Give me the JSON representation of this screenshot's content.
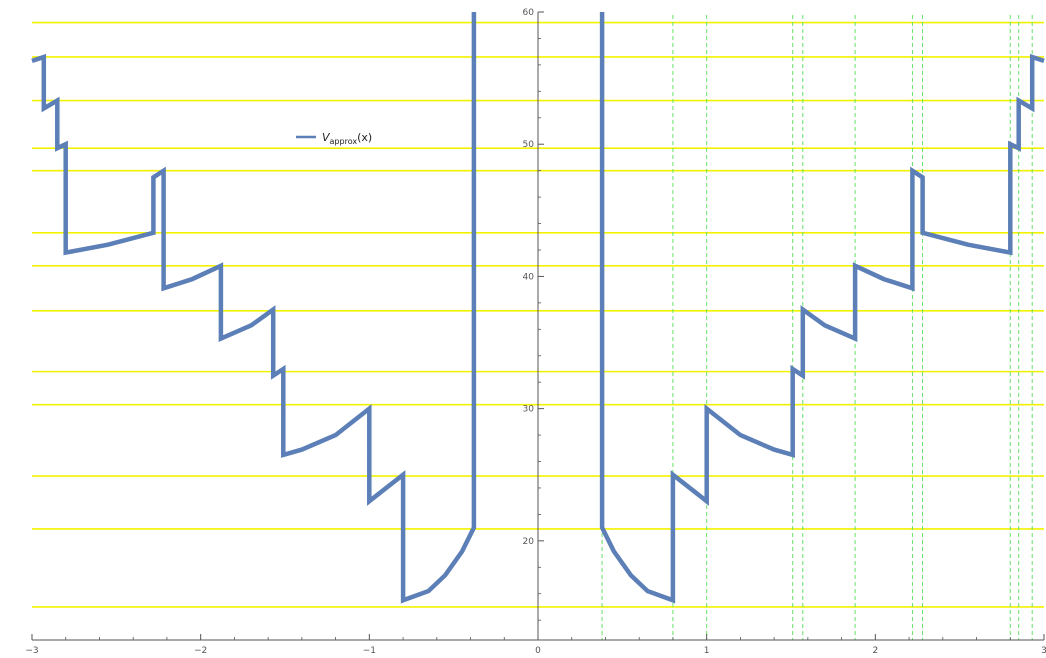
{
  "chart_data": {
    "type": "line",
    "title": "",
    "xlabel": "",
    "ylabel": "",
    "xlim": [
      -3,
      3
    ],
    "ylim": [
      12.5,
      60
    ],
    "grid": false,
    "colors": {
      "curve": "#5b7fb6",
      "levels": "#f2f200",
      "markers": "#66e066",
      "axis": "#555555"
    },
    "x_ticks": [
      -3,
      -2,
      -1,
      0,
      1,
      2,
      3
    ],
    "x_tick_labels": [
      "−3",
      "−2",
      "−1",
      "0",
      "1",
      "2",
      "3"
    ],
    "y_ticks": [
      20,
      30,
      40,
      50,
      60
    ],
    "y_tick_labels": [
      "20",
      "30",
      "40",
      "50",
      "60"
    ],
    "legend": {
      "position": "upper-left",
      "main": "V",
      "sub": "approx",
      "suffix": "(x)"
    },
    "series": [
      {
        "name": "V_approx(x)",
        "color": "#5b7fb6",
        "points_right": [
          [
            0.38,
            60
          ],
          [
            0.38,
            21.0
          ],
          [
            0.45,
            19.2
          ],
          [
            0.55,
            17.4
          ],
          [
            0.65,
            16.2
          ],
          [
            0.8,
            15.5
          ],
          [
            0.8,
            25.0
          ],
          [
            1.0,
            23.0
          ],
          [
            1.0,
            30.0
          ],
          [
            1.2,
            28.0
          ],
          [
            1.4,
            26.9
          ],
          [
            1.51,
            26.5
          ],
          [
            1.51,
            33.0
          ],
          [
            1.57,
            32.5
          ],
          [
            1.57,
            37.5
          ],
          [
            1.7,
            36.3
          ],
          [
            1.88,
            35.3
          ],
          [
            1.88,
            40.8
          ],
          [
            2.05,
            39.8
          ],
          [
            2.22,
            39.1
          ],
          [
            2.22,
            48.0
          ],
          [
            2.28,
            47.5
          ],
          [
            2.28,
            43.3
          ],
          [
            2.55,
            42.4
          ],
          [
            2.8,
            41.8
          ],
          [
            2.8,
            50.0
          ],
          [
            2.85,
            49.7
          ],
          [
            2.85,
            53.3
          ],
          [
            2.93,
            52.7
          ],
          [
            2.93,
            56.6
          ],
          [
            3.0,
            56.3
          ]
        ]
      }
    ],
    "energy_levels": [
      15.0,
      20.9,
      24.9,
      30.3,
      32.8,
      37.4,
      40.8,
      43.3,
      48.0,
      49.7,
      53.3,
      56.6,
      59.2
    ],
    "turning_points": [
      0.38,
      0.8,
      1.0,
      1.51,
      1.57,
      1.88,
      2.22,
      2.28,
      2.8,
      2.85,
      2.93
    ]
  }
}
